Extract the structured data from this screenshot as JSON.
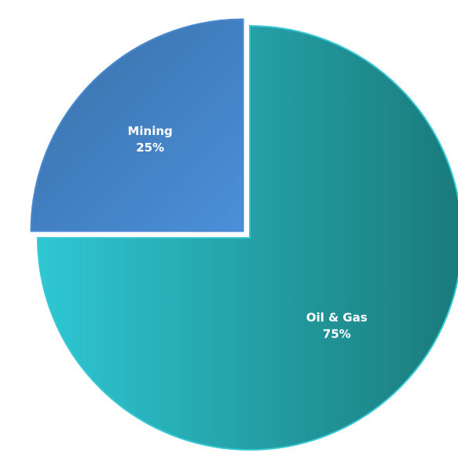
{
  "chart_data": {
    "type": "pie",
    "title": "",
    "slices": [
      {
        "label": "Oil & Gas",
        "value": 75,
        "value_label": "75%",
        "gradient": [
          "#2ec7d3",
          "#1a7a7a"
        ]
      },
      {
        "label": "Mining",
        "value": 25,
        "value_label": "25%",
        "gradient": [
          "#3a6fa8",
          "#4a90d9"
        ]
      }
    ],
    "start": "12 o'clock",
    "direction": "clockwise",
    "exploded": "Mining",
    "legend": "none"
  }
}
